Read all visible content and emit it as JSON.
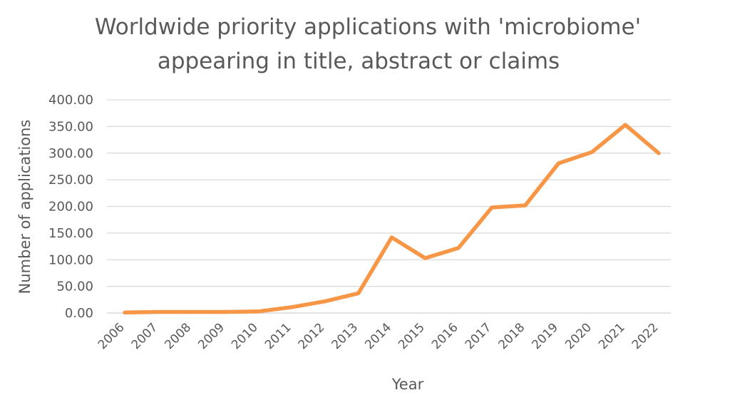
{
  "chart_data": {
    "type": "line",
    "title_lines": [
      "Worldwide priority applications with 'microbiome'",
      "appearing in title, abstract or claims"
    ],
    "xlabel": "Year",
    "ylabel": "Number of applications",
    "categories": [
      "2006",
      "2007",
      "2008",
      "2009",
      "2010",
      "2011",
      "2012",
      "2013",
      "2014",
      "2015",
      "2016",
      "2017",
      "2018",
      "2019",
      "2020",
      "2021",
      "2022"
    ],
    "y_ticks": [
      "0.00",
      "50.00",
      "100.00",
      "150.00",
      "200.00",
      "250.00",
      "300.00",
      "350.00",
      "400.00"
    ],
    "ylim": [
      0,
      400
    ],
    "grid": true,
    "legend": "none",
    "series": [
      {
        "values": [
          1,
          2,
          2,
          2,
          3,
          11,
          22,
          37,
          142,
          103,
          122,
          198,
          202,
          281,
          302,
          353,
          300
        ],
        "color": "#f79646"
      }
    ]
  }
}
